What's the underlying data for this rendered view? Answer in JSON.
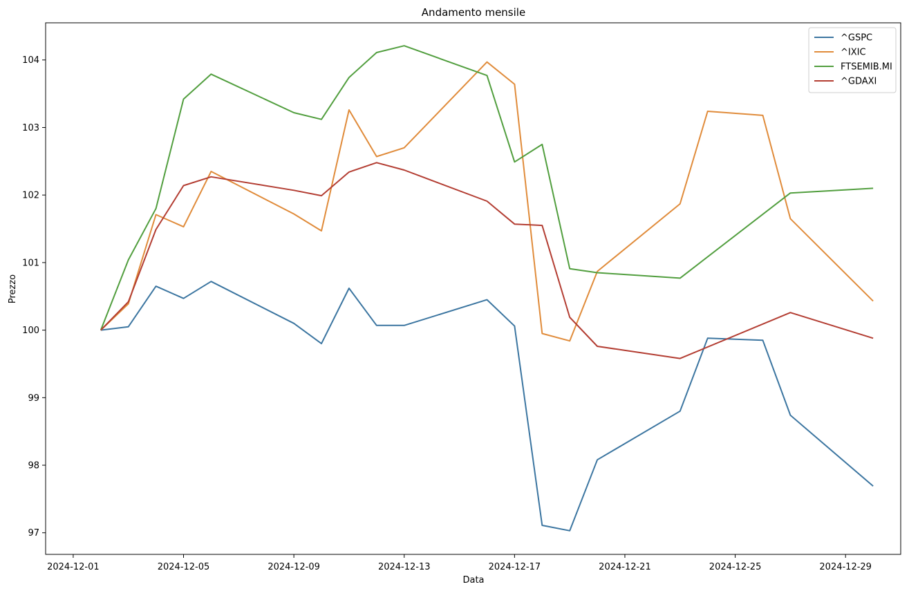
{
  "chart_data": {
    "type": "line",
    "title": "Andamento mensile",
    "xlabel": "Data",
    "ylabel": "Prezzo",
    "x_tick_labels": [
      "2024-12-01",
      "2024-12-05",
      "2024-12-09",
      "2024-12-13",
      "2024-12-17",
      "2024-12-21",
      "2024-12-25",
      "2024-12-29"
    ],
    "y_ticks": [
      97,
      98,
      99,
      100,
      101,
      102,
      103,
      104
    ],
    "xlim": [
      "2024-11-30",
      "2024-12-31"
    ],
    "ylim": [
      96.68,
      104.55
    ],
    "grid": false,
    "legend_position": "top-right",
    "dates": [
      "2024-12-02",
      "2024-12-03",
      "2024-12-04",
      "2024-12-05",
      "2024-12-06",
      "2024-12-09",
      "2024-12-10",
      "2024-12-11",
      "2024-12-12",
      "2024-12-13",
      "2024-12-16",
      "2024-12-17",
      "2024-12-18",
      "2024-12-19",
      "2024-12-20",
      "2024-12-23",
      "2024-12-24",
      "2024-12-26",
      "2024-12-27",
      "2024-12-30"
    ],
    "series": [
      {
        "name": "^GSPC",
        "color": "#3b75a0",
        "values": [
          100.0,
          100.05,
          100.65,
          100.47,
          100.72,
          100.1,
          99.8,
          100.62,
          100.07,
          100.07,
          100.45,
          100.06,
          97.11,
          97.03,
          98.08,
          98.8,
          99.88,
          99.85,
          98.74,
          97.69
        ]
      },
      {
        "name": "^IXIC",
        "color": "#e08b3a",
        "values": [
          100.0,
          100.39,
          101.71,
          101.53,
          102.35,
          101.72,
          101.47,
          103.26,
          102.57,
          102.7,
          103.97,
          103.64,
          99.95,
          99.84,
          100.87,
          101.87,
          103.24,
          103.18,
          101.65,
          100.43
        ]
      },
      {
        "name": "FTSEMIB.MI",
        "color": "#519e3e",
        "values": [
          100.0,
          101.04,
          101.8,
          103.42,
          103.79,
          103.22,
          103.12,
          103.74,
          104.11,
          104.21,
          103.77,
          102.49,
          102.75,
          100.91,
          100.85,
          100.77,
          null,
          null,
          102.03,
          102.1
        ]
      },
      {
        "name": "^GDAXI",
        "color": "#b33d32",
        "values": [
          100.0,
          100.42,
          101.49,
          102.14,
          102.27,
          102.07,
          101.99,
          102.34,
          102.48,
          102.37,
          101.91,
          101.57,
          101.55,
          100.19,
          99.76,
          99.58,
          null,
          null,
          100.26,
          99.88
        ]
      }
    ]
  }
}
